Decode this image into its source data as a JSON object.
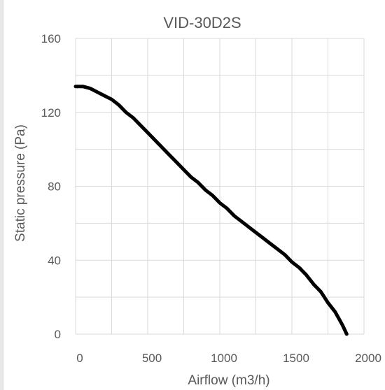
{
  "chart_data": {
    "type": "line",
    "title": "VID-30D2S",
    "xlabel": "Airflow (m3/h)",
    "ylabel": "Static pressure (Pa)",
    "xlim": [
      0,
      2000
    ],
    "ylim": [
      0,
      160
    ],
    "x_ticks": [
      "0",
      "500",
      "1000",
      "1500",
      "2000"
    ],
    "y_ticks": [
      "0",
      "40",
      "80",
      "120",
      "160"
    ],
    "grid": true,
    "line_color": "#000000",
    "series": [
      {
        "x": [
          0,
          50,
          100,
          150,
          200,
          250,
          300,
          350,
          400,
          450,
          500,
          550,
          600,
          650,
          700,
          750,
          800,
          850,
          900,
          950,
          1000,
          1050,
          1100,
          1150,
          1200,
          1250,
          1300,
          1350,
          1400,
          1450,
          1500,
          1550,
          1600,
          1650,
          1700,
          1750,
          1800,
          1850,
          1880
        ],
        "y": [
          134,
          134,
          133,
          131,
          129,
          127,
          124,
          120,
          117,
          113,
          109,
          105,
          101,
          97,
          93,
          89,
          85,
          82,
          78,
          75,
          71,
          68,
          64,
          61,
          58,
          55,
          52,
          49,
          46,
          43,
          39,
          36,
          32,
          27,
          23,
          17,
          12,
          5,
          0
        ]
      }
    ]
  }
}
